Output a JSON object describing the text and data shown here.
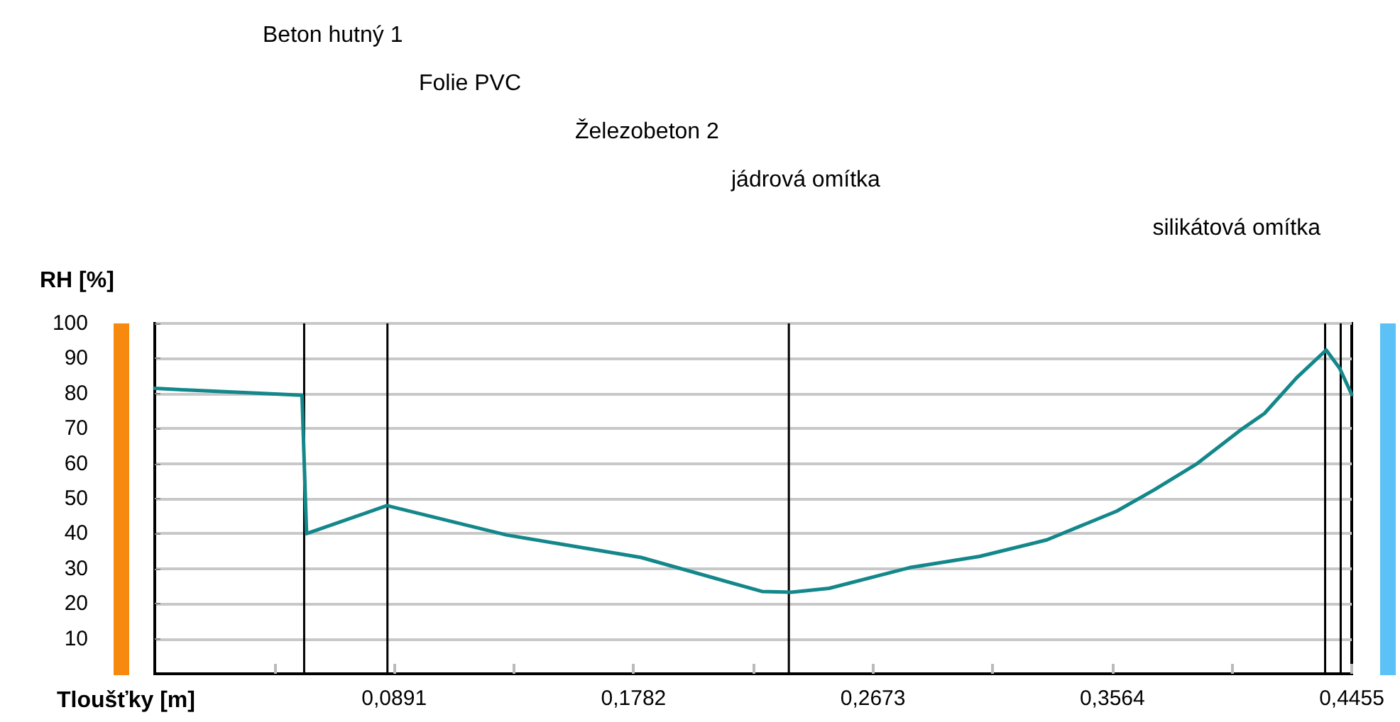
{
  "chart_data": {
    "type": "line",
    "xlabel": "Tloušťky [m]",
    "ylabel": "RH [%]",
    "xlim": [
      0,
      0.4455
    ],
    "ylim": [
      0,
      100
    ],
    "xticks": [
      {
        "value": 0.04455,
        "label": null
      },
      {
        "value": 0.0891,
        "label": "0,0891"
      },
      {
        "value": 0.13365,
        "label": null
      },
      {
        "value": 0.1782,
        "label": "0,1782"
      },
      {
        "value": 0.22275,
        "label": null
      },
      {
        "value": 0.2673,
        "label": "0,2673"
      },
      {
        "value": 0.31185,
        "label": null
      },
      {
        "value": 0.3564,
        "label": "0,3564"
      },
      {
        "value": 0.40095,
        "label": null
      },
      {
        "value": 0.4455,
        "label": "0,4455"
      }
    ],
    "yticks": [
      10,
      20,
      30,
      40,
      50,
      60,
      70,
      80,
      90,
      100
    ],
    "grid": "y",
    "marker": "none",
    "line_style": "solid",
    "series": [
      {
        "color": "#13878a",
        "x": [
          0,
          0.0116,
          0.0548,
          0.0565,
          0.0864,
          0.131,
          0.181,
          0.226,
          0.237,
          0.251,
          0.281,
          0.307,
          0.332,
          0.358,
          0.372,
          0.388,
          0.404,
          0.413,
          0.425,
          0.436,
          0.441,
          0.4455
        ],
        "values": [
          81.5,
          81,
          79.5,
          40,
          48,
          39.6,
          33.2,
          23.5,
          23.3,
          24.4,
          30.3,
          33.5,
          38.2,
          46.4,
          52.5,
          60,
          69.5,
          74.3,
          84.5,
          92.4,
          87.2,
          79.7
        ]
      }
    ],
    "ref_lines": [
      {
        "axis": "x",
        "value": 0.0556,
        "color": "#000000"
      },
      {
        "axis": "x",
        "value": 0.0866,
        "color": "#000000"
      },
      {
        "axis": "x",
        "value": 0.236,
        "color": "#000000"
      },
      {
        "axis": "x",
        "value": 0.4356,
        "color": "#000000"
      },
      {
        "axis": "x",
        "value": 0.4414,
        "color": "#000000"
      }
    ],
    "annotations": [
      "Beton hutný 1",
      "Folie PVC",
      "Železobeton 2",
      "jádrová omítka",
      "silikátová omítka"
    ]
  }
}
